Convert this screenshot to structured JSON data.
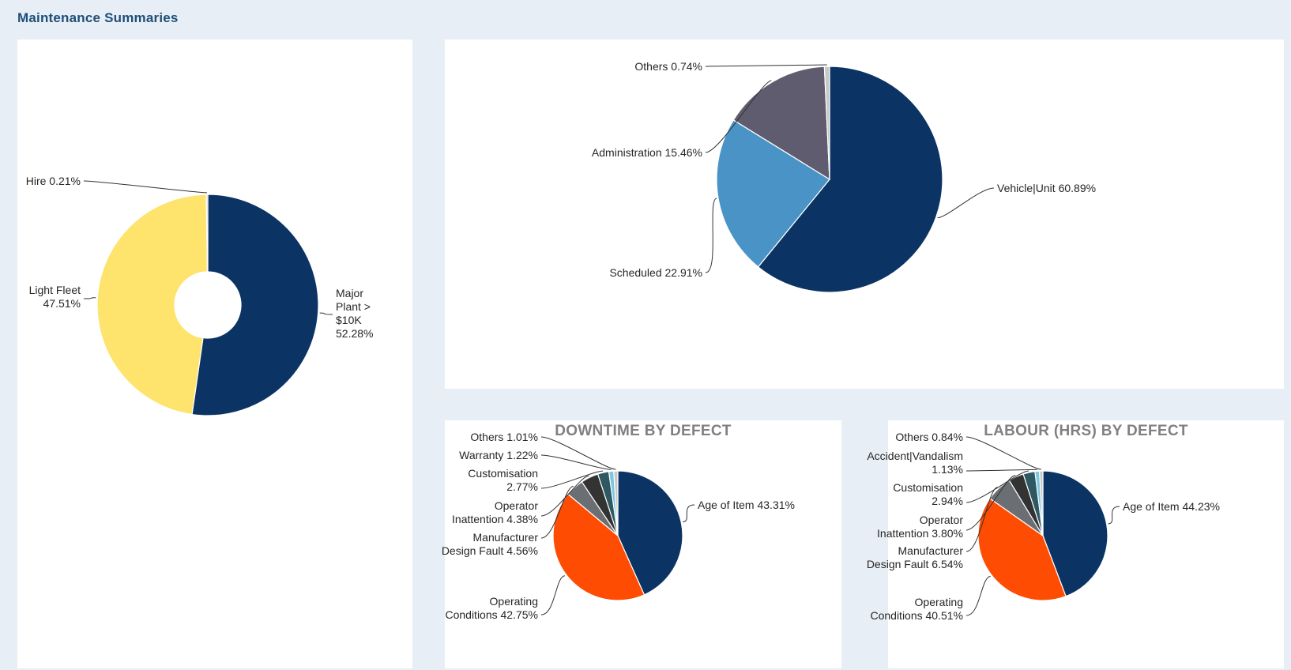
{
  "header": {
    "title": "Maintenance Summaries"
  },
  "chart_data": [
    {
      "id": "chart-a",
      "type": "pie",
      "donut": true,
      "title": "",
      "slices": [
        {
          "name": "Major Plant > $10K",
          "value": 52.28,
          "label_lines": [
            "Major",
            "Plant >",
            "$10K",
            "52.28%"
          ],
          "color": "#0b3464"
        },
        {
          "name": "Light Fleet",
          "value": 47.51,
          "label_lines": [
            "Light Fleet",
            "47.51%"
          ],
          "color": "#fee36d"
        },
        {
          "name": "Hire",
          "value": 0.21,
          "label_lines": [
            "Hire 0.21%"
          ],
          "color": "#c8c8c8"
        }
      ]
    },
    {
      "id": "chart-b",
      "type": "pie",
      "title": "",
      "slices": [
        {
          "name": "Vehicle|Unit",
          "value": 60.89,
          "label_lines": [
            "Vehicle|Unit 60.89%"
          ],
          "color": "#0b3464"
        },
        {
          "name": "Scheduled",
          "value": 22.91,
          "label_lines": [
            "Scheduled 22.91%"
          ],
          "color": "#4a93c6"
        },
        {
          "name": "Administration",
          "value": 15.46,
          "label_lines": [
            "Administration 15.46%"
          ],
          "color": "#5e5c6e"
        },
        {
          "name": "Others",
          "value": 0.74,
          "label_lines": [
            "Others 0.74%"
          ],
          "color": "#c8c8c8"
        }
      ]
    },
    {
      "id": "chart-c",
      "type": "pie",
      "title": "DOWNTIME BY DEFECT",
      "slices": [
        {
          "name": "Age of Item",
          "value": 43.31,
          "label_lines": [
            "Age of Item 43.31%"
          ],
          "color": "#0b3464"
        },
        {
          "name": "Operating Conditions",
          "value": 42.75,
          "label_lines": [
            "Operating",
            "Conditions 42.75%"
          ],
          "color": "#fe4d03"
        },
        {
          "name": "Manufacturer Design Fault",
          "value": 4.56,
          "label_lines": [
            "Manufacturer",
            "Design Fault 4.56%"
          ],
          "color": "#6b6f73"
        },
        {
          "name": "Operator Inattention",
          "value": 4.38,
          "label_lines": [
            "Operator",
            "Inattention 4.38%"
          ],
          "color": "#333333"
        },
        {
          "name": "Customisation",
          "value": 2.77,
          "label_lines": [
            "Customisation",
            "2.77%"
          ],
          "color": "#2e5963"
        },
        {
          "name": "Warranty",
          "value": 1.22,
          "label_lines": [
            "Warranty 1.22%"
          ],
          "color": "#7fc7e1"
        },
        {
          "name": "Others",
          "value": 1.01,
          "label_lines": [
            "Others 1.01%"
          ],
          "color": "#c8c8c8"
        }
      ]
    },
    {
      "id": "chart-d",
      "type": "pie",
      "title": "LABOUR (HRS) BY DEFECT",
      "slices": [
        {
          "name": "Age of Item",
          "value": 44.23,
          "label_lines": [
            "Age of Item 44.23%"
          ],
          "color": "#0b3464"
        },
        {
          "name": "Operating Conditions",
          "value": 40.51,
          "label_lines": [
            "Operating",
            "Conditions 40.51%"
          ],
          "color": "#fe4d03"
        },
        {
          "name": "Manufacturer Design Fault",
          "value": 6.54,
          "label_lines": [
            "Manufacturer",
            "Design Fault 6.54%"
          ],
          "color": "#6b6f73"
        },
        {
          "name": "Operator Inattention",
          "value": 3.8,
          "label_lines": [
            "Operator",
            "Inattention 3.80%"
          ],
          "color": "#333333"
        },
        {
          "name": "Customisation",
          "value": 2.94,
          "label_lines": [
            "Customisation",
            "2.94%"
          ],
          "color": "#2e5963"
        },
        {
          "name": "Accident|Vandalism",
          "value": 1.13,
          "label_lines": [
            "Accident|Vandalism",
            "1.13%"
          ],
          "color": "#7fc7e1"
        },
        {
          "name": "Others",
          "value": 0.84,
          "label_lines": [
            "Others 0.84%"
          ],
          "color": "#c8c8c8"
        }
      ]
    }
  ]
}
